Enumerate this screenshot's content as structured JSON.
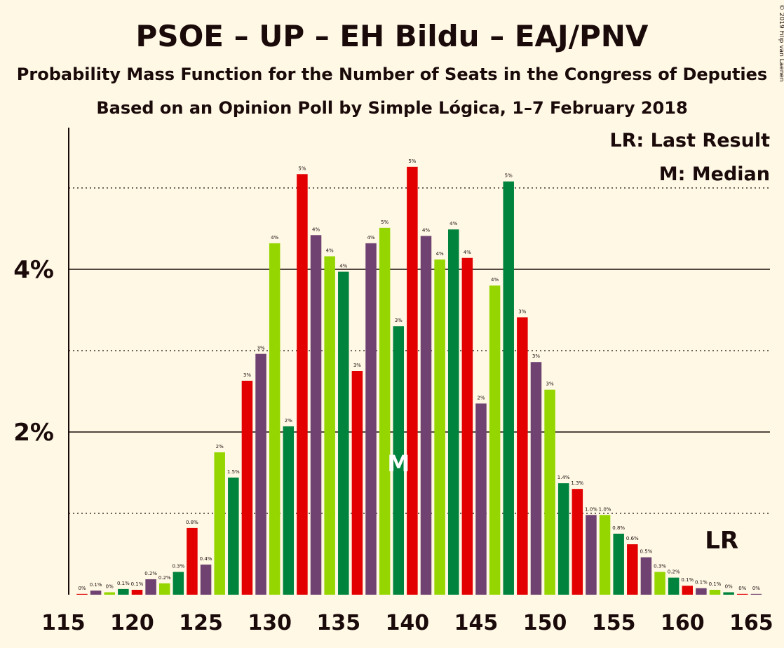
{
  "title": "PSOE – UP – EH Bildu – EAJ/PNV",
  "subtitle": "Probability Mass Function for the Number of Seats in the Congress of Deputies",
  "subtitle2": "Based on an Opinion Poll by Simple Lógica, 1–7 February 2018",
  "copyright": "© 2019 Filip van Laenen",
  "legend": {
    "lr": "LR: Last Result",
    "m": "M: Median"
  },
  "markers": {
    "median_label": "M",
    "median_seat": 139,
    "lr_label": "LR",
    "lr_seat": 163
  },
  "colors": {
    "background": "#FFF8E5",
    "palette": [
      "#E30000",
      "#6F4271",
      "#96D600",
      "#00843D"
    ]
  },
  "chart_data": {
    "type": "bar",
    "xlim": [
      115,
      165
    ],
    "ylim": [
      0,
      5.7
    ],
    "yticks": [
      {
        "value": 2,
        "label": "2%"
      },
      {
        "value": 4,
        "label": "4%"
      }
    ],
    "xticks": [
      {
        "value": 115,
        "label": "115"
      },
      {
        "value": 120,
        "label": "120"
      },
      {
        "value": 125,
        "label": "125"
      },
      {
        "value": 130,
        "label": "130"
      },
      {
        "value": 135,
        "label": "135"
      },
      {
        "value": 140,
        "label": "140"
      },
      {
        "value": 145,
        "label": "145"
      },
      {
        "value": 150,
        "label": "150"
      },
      {
        "value": 155,
        "label": "155"
      },
      {
        "value": 160,
        "label": "160"
      },
      {
        "value": 165,
        "label": "165"
      }
    ],
    "gridlines": [
      1,
      2,
      3,
      4,
      5
    ],
    "bars": [
      {
        "seat": 116,
        "value": 0.01,
        "label": "0%"
      },
      {
        "seat": 117,
        "value": 0.05,
        "label": "0.1%"
      },
      {
        "seat": 118,
        "value": 0.03,
        "label": "0%"
      },
      {
        "seat": 119,
        "value": 0.07,
        "label": "0.1%"
      },
      {
        "seat": 120,
        "value": 0.06,
        "label": "0.1%"
      },
      {
        "seat": 121,
        "value": 0.19,
        "label": "0.2%"
      },
      {
        "seat": 122,
        "value": 0.14,
        "label": "0.2%"
      },
      {
        "seat": 123,
        "value": 0.28,
        "label": "0.3%"
      },
      {
        "seat": 124,
        "value": 0.82,
        "label": "0.8%"
      },
      {
        "seat": 125,
        "value": 0.37,
        "label": "0.4%"
      },
      {
        "seat": 126,
        "value": 1.75,
        "label": "2%"
      },
      {
        "seat": 127,
        "value": 1.44,
        "label": "1.5%"
      },
      {
        "seat": 128,
        "value": 2.63,
        "label": "3%"
      },
      {
        "seat": 129,
        "value": 2.96,
        "label": "3%"
      },
      {
        "seat": 130,
        "value": 4.32,
        "label": "4%"
      },
      {
        "seat": 131,
        "value": 2.07,
        "label": "2%"
      },
      {
        "seat": 132,
        "value": 5.17,
        "label": "5%"
      },
      {
        "seat": 133,
        "value": 4.42,
        "label": "4%"
      },
      {
        "seat": 134,
        "value": 4.16,
        "label": "4%"
      },
      {
        "seat": 135,
        "value": 3.97,
        "label": "4%"
      },
      {
        "seat": 136,
        "value": 2.75,
        "label": "3%"
      },
      {
        "seat": 137,
        "value": 4.32,
        "label": "4%"
      },
      {
        "seat": 138,
        "value": 4.51,
        "label": "5%"
      },
      {
        "seat": 139,
        "value": 3.3,
        "label": "3%"
      },
      {
        "seat": 140,
        "value": 5.26,
        "label": "5%"
      },
      {
        "seat": 141,
        "value": 4.41,
        "label": "4%"
      },
      {
        "seat": 142,
        "value": 4.12,
        "label": "4%"
      },
      {
        "seat": 143,
        "value": 4.49,
        "label": "4%"
      },
      {
        "seat": 144,
        "value": 4.14,
        "label": "4%"
      },
      {
        "seat": 145,
        "value": 2.35,
        "label": "2%"
      },
      {
        "seat": 146,
        "value": 3.8,
        "label": "4%"
      },
      {
        "seat": 147,
        "value": 5.08,
        "label": "5%"
      },
      {
        "seat": 148,
        "value": 3.41,
        "label": "3%"
      },
      {
        "seat": 149,
        "value": 2.86,
        "label": "3%"
      },
      {
        "seat": 150,
        "value": 2.52,
        "label": "3%"
      },
      {
        "seat": 151,
        "value": 1.37,
        "label": "1.4%"
      },
      {
        "seat": 152,
        "value": 1.3,
        "label": "1.3%"
      },
      {
        "seat": 153,
        "value": 0.98,
        "label": "1.0%"
      },
      {
        "seat": 154,
        "value": 0.98,
        "label": "1.0%"
      },
      {
        "seat": 155,
        "value": 0.75,
        "label": "0.8%"
      },
      {
        "seat": 156,
        "value": 0.62,
        "label": "0.6%"
      },
      {
        "seat": 157,
        "value": 0.46,
        "label": "0.5%"
      },
      {
        "seat": 158,
        "value": 0.28,
        "label": "0.3%"
      },
      {
        "seat": 159,
        "value": 0.21,
        "label": "0.2%"
      },
      {
        "seat": 160,
        "value": 0.11,
        "label": "0.1%"
      },
      {
        "seat": 161,
        "value": 0.08,
        "label": "0.1%"
      },
      {
        "seat": 162,
        "value": 0.06,
        "label": "0.1%"
      },
      {
        "seat": 163,
        "value": 0.03,
        "label": "0%"
      },
      {
        "seat": 164,
        "value": 0.01,
        "label": "0%"
      },
      {
        "seat": 165,
        "value": 0.01,
        "label": "0%"
      }
    ]
  }
}
